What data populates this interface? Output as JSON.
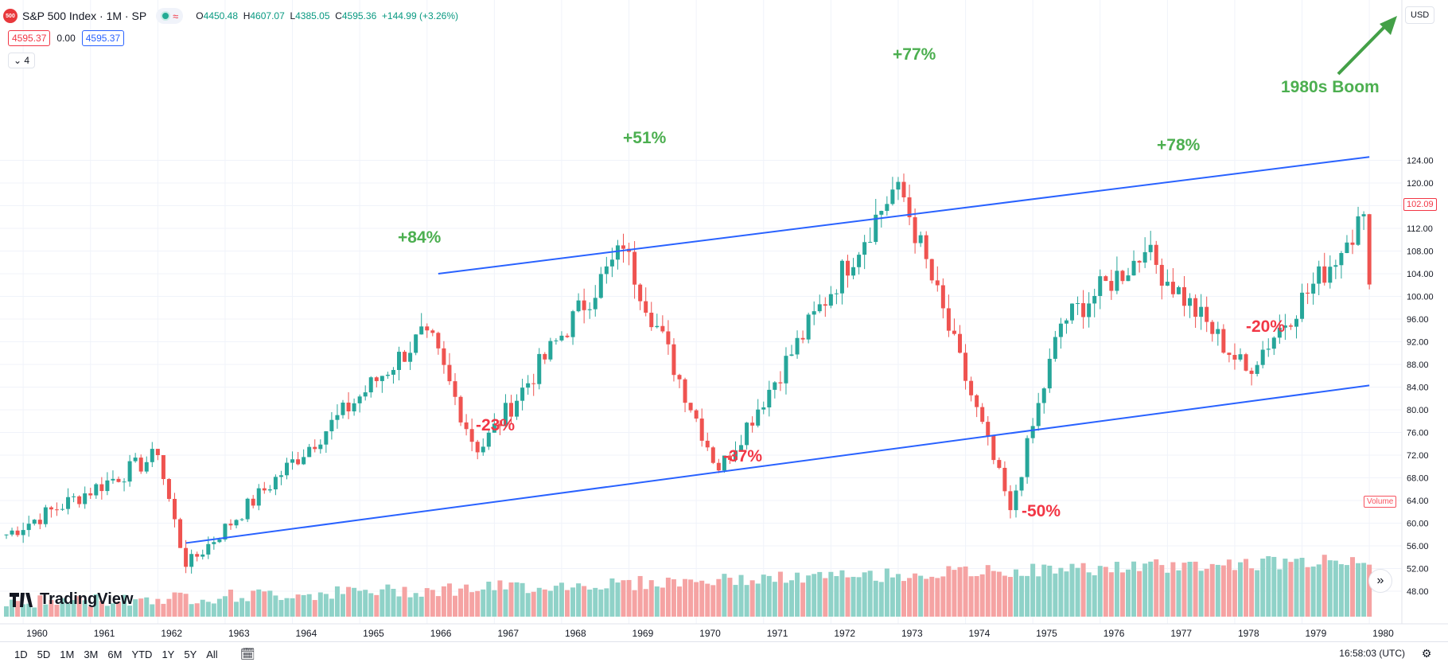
{
  "header": {
    "symbol_badge": "500",
    "title": "S&P 500 Index · 1M · SP",
    "market_status_icon": "green-dot-icon",
    "wave_icon": "wave-icon",
    "ohlc": {
      "open_label": "O",
      "open": "4450.48",
      "high_label": "H",
      "high": "4607.07",
      "low_label": "L",
      "low": "4385.05",
      "close_label": "C",
      "close": "4595.36",
      "change": "+144.99 (+3.26%)"
    },
    "sell_price": "4595.37",
    "spread": "0.00",
    "buy_price": "4595.37",
    "indicators_count": "4",
    "currency": "USD"
  },
  "price_scale": {
    "ticks": [
      "124.00",
      "120.00",
      "116.00",
      "112.00",
      "108.00",
      "104.00",
      "100.00",
      "96.00",
      "92.00",
      "88.00",
      "84.00",
      "80.00",
      "76.00",
      "72.00",
      "68.00",
      "64.00",
      "60.00",
      "56.00",
      "52.00",
      "48.00"
    ],
    "last_price_tag": "102.09",
    "volume_tag": "Volume"
  },
  "time_scale": {
    "ticks": [
      "1960",
      "1961",
      "1962",
      "1963",
      "1964",
      "1965",
      "1966",
      "1967",
      "1968",
      "1969",
      "1970",
      "1971",
      "1972",
      "1973",
      "1974",
      "1975",
      "1976",
      "1977",
      "1978",
      "1979",
      "1980"
    ]
  },
  "annotations": {
    "p84": "+84%",
    "n23": "-23%",
    "p51": "+51%",
    "n37": "-37%",
    "p77": "+77%",
    "n50": "-50%",
    "p78": "+78%",
    "n20": "-20%",
    "boom": "1980s Boom"
  },
  "branding": {
    "logo_text": "TradingView"
  },
  "bottom_bar": {
    "timeframes": [
      "1D",
      "5D",
      "1M",
      "3M",
      "6M",
      "YTD",
      "1Y",
      "5Y",
      "All"
    ],
    "clock": "16:58:03 (UTC)"
  },
  "colors": {
    "up": "#26a69a",
    "down": "#ef5350",
    "trendline": "#2962ff",
    "annotation_positive": "#4caf50",
    "annotation_negative": "#f23645",
    "volume_up": "#8fd2c8",
    "volume_down": "#f5a3a3"
  },
  "chart_data": {
    "type": "candlestick",
    "title": "S&P 500 Index · 1M · SP",
    "x_range": [
      "1959-10",
      "1980-01"
    ],
    "ylim": [
      46,
      127
    ],
    "key_levels": [
      {
        "date": "1959-10",
        "price": 58.0
      },
      {
        "date": "1962-01",
        "price": 72.0
      },
      {
        "date": "1962-06",
        "price": 52.3
      },
      {
        "date": "1966-01",
        "price": 94.0
      },
      {
        "date": "1966-10",
        "price": 72.5
      },
      {
        "date": "1968-12",
        "price": 108.4
      },
      {
        "date": "1970-05",
        "price": 69.3
      },
      {
        "date": "1973-01",
        "price": 120.2
      },
      {
        "date": "1974-09",
        "price": 62.3
      },
      {
        "date": "1975-06",
        "price": 95.2
      },
      {
        "date": "1976-09",
        "price": 107.8
      },
      {
        "date": "1978-03",
        "price": 86.9
      },
      {
        "date": "1979-09",
        "price": 109.5
      },
      {
        "date": "1979-12",
        "price": 114.5
      },
      {
        "date": "1980-01",
        "price": 102.1
      }
    ],
    "trendlines": [
      {
        "from": {
          "date": "1966-03",
          "price": 104.0
        },
        "to": {
          "date": "1980-01",
          "price": 124.6
        }
      },
      {
        "from": {
          "date": "1962-06",
          "price": 56.5
        },
        "to": {
          "date": "1980-01",
          "price": 84.3
        }
      }
    ]
  }
}
